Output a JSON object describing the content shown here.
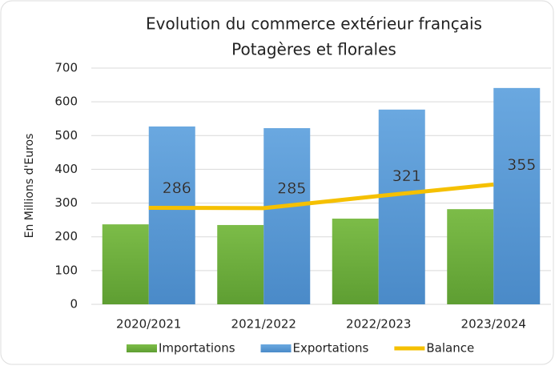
{
  "chart_data": {
    "type": "bar",
    "title": "Evolution du commerce extérieur français",
    "subtitle": "Potagères et florales",
    "y_label": "En Millions d'Euros",
    "categories": [
      "2020/2021",
      "2021/2022",
      "2022/2023",
      "2023/2024"
    ],
    "series": [
      {
        "name": "Importations",
        "color": "#6fae3e",
        "values": [
          237,
          235,
          254,
          282
        ]
      },
      {
        "name": "Exportations",
        "color": "#5b9bd5",
        "values": [
          527,
          522,
          577,
          641
        ]
      },
      {
        "name": "Balance",
        "color": "#f5c000",
        "type": "line",
        "values": [
          286,
          285,
          321,
          355
        ]
      }
    ],
    "ylim": [
      0,
      700
    ],
    "yticks": [
      0,
      100,
      200,
      300,
      400,
      500,
      600,
      700
    ],
    "grid": true
  }
}
